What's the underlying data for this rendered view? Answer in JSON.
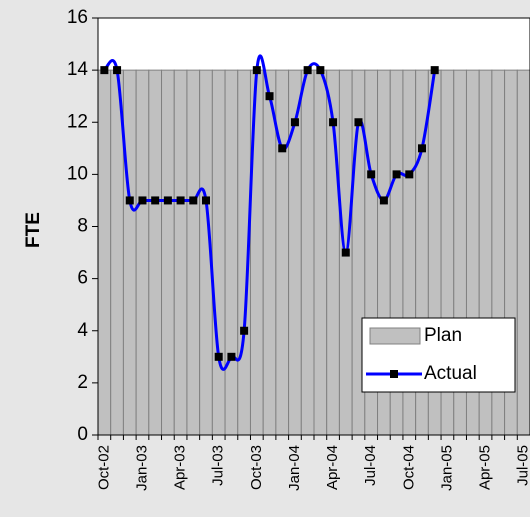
{
  "chart_data": {
    "type": "bar-line",
    "y_label": "FTE",
    "categories": [
      "Oct-02",
      null,
      null,
      "Jan-03",
      null,
      null,
      "Apr-03",
      null,
      null,
      "Jul-03",
      null,
      null,
      "Oct-03",
      null,
      null,
      "Jan-04",
      null,
      null,
      "Apr-04",
      null,
      null,
      "Jul-04",
      null,
      null,
      "Oct-04",
      null,
      null,
      "Jan-05",
      null,
      null,
      "Apr-05",
      null,
      null,
      "Jul-05"
    ],
    "series": [
      {
        "name": "Plan",
        "type": "bar",
        "color": "#c0c0c0",
        "values": [
          14,
          14,
          14,
          14,
          14,
          14,
          14,
          14,
          14,
          14,
          14,
          14,
          14,
          14,
          14,
          14,
          14,
          14,
          14,
          14,
          14,
          14,
          14,
          14,
          14,
          14,
          14,
          14,
          14,
          14,
          14,
          14,
          14,
          14
        ]
      },
      {
        "name": "Actual",
        "type": "line",
        "color": "#0000ff",
        "values": [
          14,
          14,
          9,
          9,
          9,
          9,
          9,
          9,
          9,
          3,
          3,
          4,
          14,
          13,
          11,
          12,
          14,
          14,
          12,
          7,
          12,
          10,
          9,
          10,
          10,
          11,
          14,
          null,
          null,
          null,
          null,
          null,
          null,
          null
        ]
      }
    ],
    "ylim": [
      0,
      16
    ],
    "yticks": [
      0,
      2,
      4,
      6,
      8,
      10,
      12,
      14,
      16
    ],
    "legend": "lower right"
  }
}
